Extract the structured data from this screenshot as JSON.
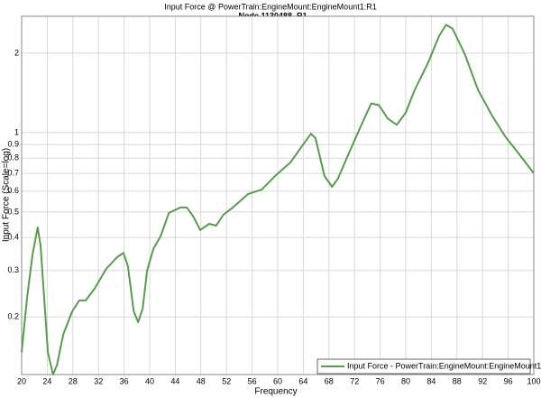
{
  "chart_data": {
    "type": "line",
    "title": "Input Force @ PowerTrain:EngineMount:EngineMount1:R1",
    "subtitle": ", Node 1130488, R1",
    "x_label": "Frequency",
    "y_label": "Input Force (Scale=log)",
    "x": [
      20,
      20.85,
      21.7,
      22.5,
      22.96,
      24.1,
      24.9,
      25.5,
      26.5,
      27.9,
      29.0,
      30.0,
      31.4,
      33.2,
      34.9,
      35.9,
      36.6,
      37.5,
      38.2,
      38.9,
      39.6,
      40.6,
      41.7,
      43.0,
      44.8,
      45.8,
      46.8,
      47.9,
      49.3,
      50.4,
      51.5,
      53.0,
      55.4,
      57.5,
      59.6,
      62.0,
      63.8,
      65.2,
      65.9,
      67.3,
      68.5,
      69.4,
      70.8,
      73.0,
      74.6,
      75.8,
      77.2,
      78.6,
      80.0,
      81.4,
      83.5,
      85.2,
      86.3,
      87.3,
      89.2,
      91.3,
      93.4,
      95.5,
      97.6,
      100
    ],
    "series": [
      {
        "name": "Input Force - PowerTrain:EngineMount:EngineMount1:R1",
        "color": "#5a9a50",
        "values": [
          0.147,
          0.236,
          0.345,
          0.437,
          0.373,
          0.147,
          0.121,
          0.131,
          0.172,
          0.21,
          0.231,
          0.231,
          0.256,
          0.304,
          0.337,
          0.35,
          0.311,
          0.21,
          0.191,
          0.215,
          0.3,
          0.364,
          0.404,
          0.496,
          0.52,
          0.52,
          0.481,
          0.427,
          0.451,
          0.444,
          0.488,
          0.52,
          0.585,
          0.608,
          0.685,
          0.771,
          0.889,
          0.99,
          0.953,
          0.685,
          0.623,
          0.668,
          0.802,
          1.06,
          1.29,
          1.27,
          1.13,
          1.07,
          1.19,
          1.45,
          1.84,
          2.32,
          2.56,
          2.48,
          1.99,
          1.45,
          1.17,
          0.97,
          0.834,
          0.701
        ]
      }
    ],
    "xlim": [
      20,
      100
    ],
    "xticks": [
      20,
      24,
      28,
      32,
      36,
      40,
      44,
      48,
      52,
      56,
      60,
      64,
      68,
      72,
      76,
      80,
      84,
      88,
      92,
      96,
      100
    ],
    "ylim": [
      0.121,
      2.76
    ],
    "yticks": [
      0.2,
      0.3,
      0.4,
      0.5,
      0.6,
      0.7,
      0.8,
      0.9,
      1,
      2
    ],
    "log_y": true,
    "grid": true,
    "legend": "bottom-right"
  }
}
